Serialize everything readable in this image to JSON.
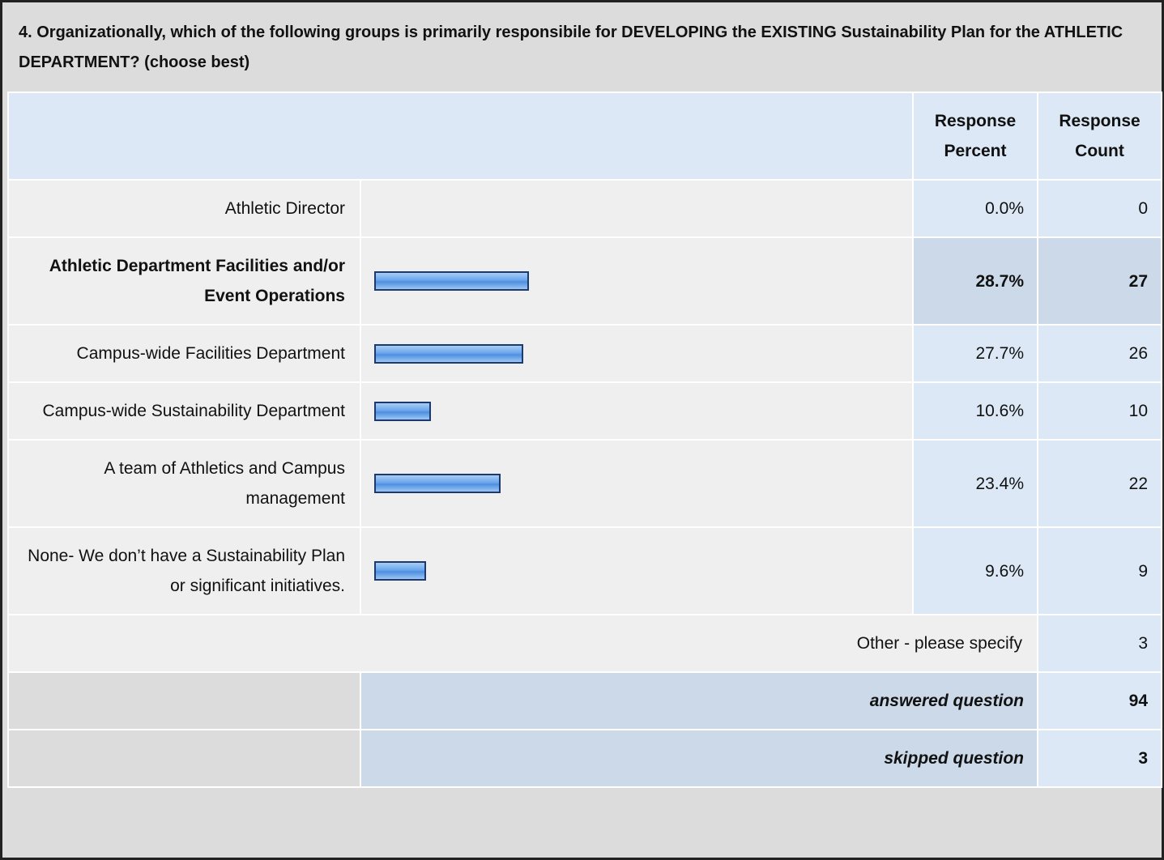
{
  "question": {
    "title": "4. Organizationally, which of the following groups is primarily responsibile for DEVELOPING the EXISTING Sustainability Plan for the ATHLETIC DEPARTMENT? (choose best)"
  },
  "table": {
    "header": [
      "Response Percent",
      "Response Count"
    ],
    "rows": [
      {
        "label": "Athletic Director",
        "percent": 0,
        "percent_label": "0.0%",
        "count": 0,
        "highlight": false
      },
      {
        "label": "Athletic Department Facilities and/or Event Operations",
        "percent": 28.7,
        "percent_label": "28.7%",
        "count": 27,
        "highlight": true
      },
      {
        "label": "Campus-wide Facilities Department",
        "percent": 27.7,
        "percent_label": "27.7%",
        "count": 26,
        "highlight": false
      },
      {
        "label": "Campus-wide Sustainability Department",
        "percent": 10.6,
        "percent_label": "10.6%",
        "count": 10,
        "highlight": false
      },
      {
        "label": "A team of Athletics and Campus management",
        "percent": 23.4,
        "percent_label": "23.4%",
        "count": 22,
        "highlight": false
      },
      {
        "label": "None- We don’t have a Sustainability Plan or significant initiatives.",
        "percent": 9.6,
        "percent_label": "9.6%",
        "count": 9,
        "highlight": false
      }
    ],
    "other": {
      "label": "Other - please specify",
      "count": 3
    },
    "answered": {
      "label": "answered question",
      "count": 94
    },
    "skipped": {
      "label": "skipped question",
      "count": 3
    }
  }
}
